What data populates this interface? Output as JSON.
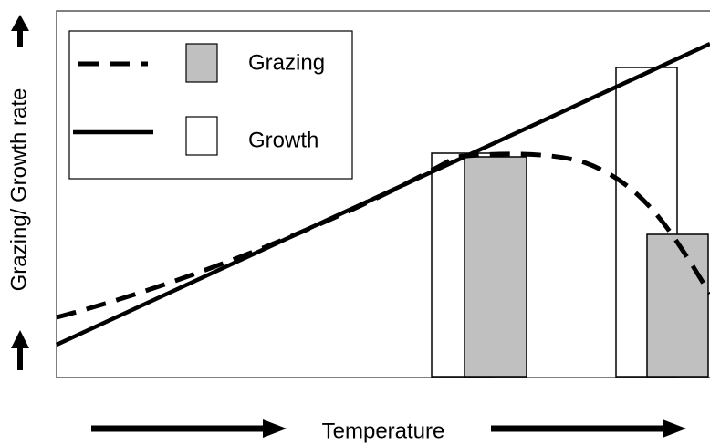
{
  "y_axis_label": "Grazing/ Growth rate",
  "x_axis_label": "Temperature",
  "legend": {
    "items": [
      {
        "label": "Grazing"
      },
      {
        "label": "Growth"
      }
    ]
  }
}
